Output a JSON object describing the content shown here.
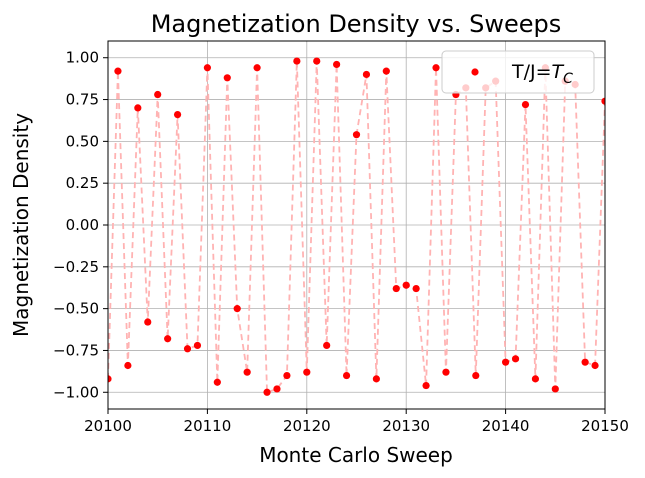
{
  "chart_data": {
    "type": "scatter",
    "title": "Magnetization Density vs. Sweeps",
    "xlabel": "Monte Carlo Sweep",
    "ylabel": "Magnetization Density",
    "xlim": [
      20100,
      20150
    ],
    "ylim": [
      -1.1,
      1.1
    ],
    "xticks": [
      20100,
      20110,
      20120,
      20130,
      20140,
      20150
    ],
    "yticks": [
      -1.0,
      -0.75,
      -0.5,
      -0.25,
      0.0,
      0.25,
      0.5,
      0.75,
      1.0
    ],
    "xtick_labels": [
      "20100",
      "20110",
      "20120",
      "20130",
      "20140",
      "20150"
    ],
    "ytick_labels": [
      "−1.00",
      "−0.75",
      "−0.50",
      "−0.25",
      "0.00",
      "0.25",
      "0.50",
      "0.75",
      "1.00"
    ],
    "grid": true,
    "legend": {
      "position": "top-right",
      "label_prefix": "T/J=",
      "label_symbol": "T",
      "label_subscript": "C"
    },
    "marker_color": "#ff0000",
    "line_color": "#ffb3b3",
    "series": [
      {
        "name": "T/J=T_C",
        "x": [
          20100,
          20101,
          20102,
          20103,
          20104,
          20105,
          20106,
          20107,
          20108,
          20109,
          20110,
          20111,
          20112,
          20113,
          20114,
          20115,
          20116,
          20117,
          20118,
          20119,
          20120,
          20121,
          20122,
          20123,
          20124,
          20125,
          20126,
          20127,
          20128,
          20129,
          20130,
          20131,
          20132,
          20133,
          20134,
          20135,
          20136,
          20137,
          20138,
          20139,
          20140,
          20141,
          20142,
          20143,
          20144,
          20145,
          20146,
          20147,
          20148,
          20149,
          20150
        ],
        "y": [
          -0.92,
          0.92,
          -0.84,
          0.7,
          -0.58,
          0.78,
          -0.68,
          0.66,
          -0.74,
          -0.72,
          0.94,
          -0.94,
          0.88,
          -0.5,
          -0.88,
          0.94,
          -1.0,
          -0.98,
          -0.9,
          0.98,
          -0.88,
          0.98,
          -0.72,
          0.96,
          -0.9,
          0.54,
          0.9,
          -0.92,
          0.92,
          -0.38,
          -0.36,
          -0.38,
          -0.96,
          0.94,
          -0.88,
          0.78,
          0.82,
          -0.9,
          0.82,
          0.86,
          -0.82,
          -0.8,
          0.72,
          -0.92,
          0.94,
          -0.98,
          0.86,
          0.84,
          -0.82,
          -0.84,
          0.74
        ]
      }
    ]
  }
}
